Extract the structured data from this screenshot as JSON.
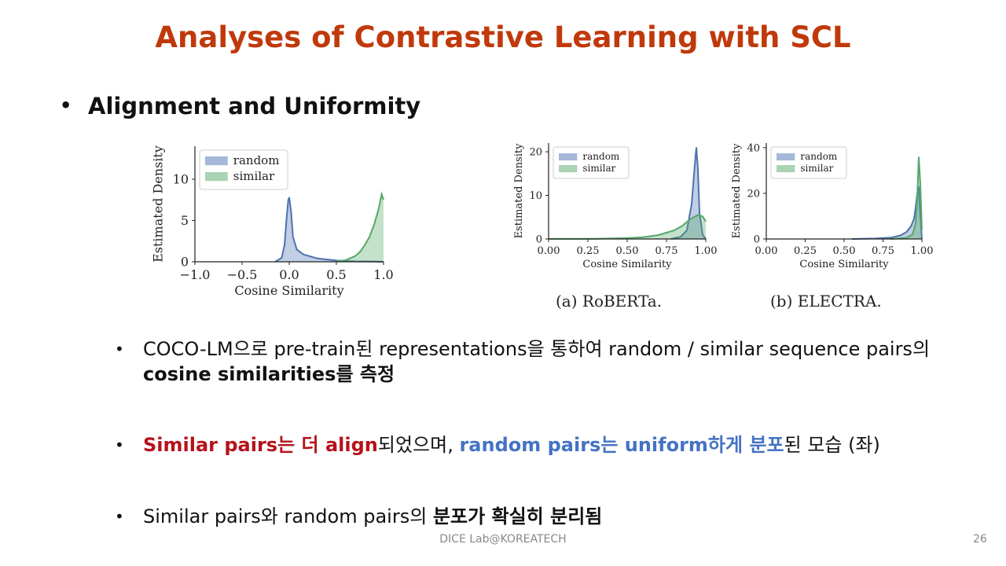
{
  "slide": {
    "title": "Analyses of Contrastive Learning with SCL",
    "section_bullet": "Alignment and Uniformity",
    "footer": "DICE Lab@KOREATECH",
    "page_number": "26"
  },
  "colors": {
    "title": "#c0390b",
    "random": "#4c72b0",
    "similar": "#55a868",
    "red_text": "#b5121b",
    "blue_text": "#4472c4"
  },
  "captions": {
    "roberta": "(a) RoBERTa.",
    "electra": "(b) ELECTRA."
  },
  "bullets": {
    "b1": {
      "t1": "COCO-LM으로 pre-train된 representations을 통하여 random / similar sequence pairs의 ",
      "t2": "cosine similarities를 측정"
    },
    "b2": {
      "t1": "Similar pairs는 더 align",
      "t2": "되었으며, ",
      "t3": "random pairs는 uniform하게 분포",
      "t4": "된 모습 (좌)"
    },
    "b3": {
      "t1": "Similar pairs와 random pairs의 ",
      "t2": "분포가 확실히 분리됨"
    }
  },
  "chart_data": [
    {
      "type": "area",
      "title": "",
      "xlabel": "Cosine Similarity",
      "ylabel": "Estimated Density",
      "xlim": [
        -1.0,
        1.0
      ],
      "ylim": [
        0,
        14
      ],
      "xticks": [
        -1.0,
        -0.5,
        0.0,
        0.5,
        1.0
      ],
      "xtick_labels": [
        "−1.0",
        "−0.5",
        "0.0",
        "0.5",
        "1.0"
      ],
      "yticks": [
        0,
        5,
        10
      ],
      "ytick_labels": [
        "0",
        "5",
        "10"
      ],
      "legend": "top-left",
      "series": [
        {
          "name": "random",
          "x": [
            -0.15,
            -0.08,
            -0.05,
            -0.03,
            -0.01,
            0.0,
            0.02,
            0.04,
            0.08,
            0.15,
            0.3,
            0.5,
            0.7,
            0.9,
            1.0
          ],
          "y": [
            0,
            0.5,
            2.0,
            5.0,
            7.5,
            7.8,
            6.0,
            3.0,
            1.5,
            0.9,
            0.4,
            0.15,
            0.05,
            0.02,
            0
          ]
        },
        {
          "name": "similar",
          "x": [
            0.5,
            0.6,
            0.7,
            0.75,
            0.8,
            0.85,
            0.9,
            0.95,
            0.98,
            1.0
          ],
          "y": [
            0.05,
            0.2,
            0.7,
            1.2,
            2.0,
            3.0,
            4.5,
            6.5,
            8.2,
            7.5
          ]
        }
      ]
    },
    {
      "type": "area",
      "title": "",
      "xlabel": "Cosine Similarity",
      "ylabel": "Estimated Density",
      "xlim": [
        0.0,
        1.0
      ],
      "ylim": [
        0,
        22
      ],
      "xticks": [
        0.0,
        0.25,
        0.5,
        0.75,
        1.0
      ],
      "xtick_labels": [
        "0.00",
        "0.25",
        "0.50",
        "0.75",
        "1.00"
      ],
      "yticks": [
        0,
        10,
        20
      ],
      "ytick_labels": [
        "0",
        "10",
        "20"
      ],
      "legend": "top-left",
      "series": [
        {
          "name": "random",
          "x": [
            0.78,
            0.84,
            0.88,
            0.91,
            0.93,
            0.94,
            0.95,
            0.96,
            0.98,
            1.0
          ],
          "y": [
            0,
            0.5,
            2.0,
            8.0,
            17.0,
            21.0,
            16.0,
            6.0,
            1.0,
            0
          ]
        },
        {
          "name": "similar",
          "x": [
            0.0,
            0.3,
            0.5,
            0.6,
            0.7,
            0.8,
            0.85,
            0.9,
            0.95,
            0.98,
            1.0
          ],
          "y": [
            0.02,
            0.05,
            0.2,
            0.4,
            0.9,
            2.0,
            3.0,
            4.5,
            5.5,
            5.2,
            4.0
          ]
        }
      ]
    },
    {
      "type": "area",
      "title": "",
      "xlabel": "Cosine Similarity",
      "ylabel": "Estimated Density",
      "xlim": [
        0.0,
        1.0
      ],
      "ylim": [
        0,
        42
      ],
      "xticks": [
        0.0,
        0.25,
        0.5,
        0.75,
        1.0
      ],
      "xtick_labels": [
        "0.00",
        "0.25",
        "0.50",
        "0.75",
        "1.00"
      ],
      "yticks": [
        0,
        20,
        40
      ],
      "ytick_labels": [
        "0",
        "20",
        "40"
      ],
      "legend": "top-left",
      "series": [
        {
          "name": "random",
          "x": [
            0.55,
            0.7,
            0.8,
            0.86,
            0.9,
            0.93,
            0.95,
            0.96,
            0.97,
            0.98,
            0.99,
            1.0
          ],
          "y": [
            0,
            0.2,
            0.6,
            1.5,
            3.0,
            5.5,
            9.0,
            14.0,
            20.0,
            23.0,
            10.0,
            0
          ]
        },
        {
          "name": "similar",
          "x": [
            0.8,
            0.9,
            0.94,
            0.96,
            0.97,
            0.98,
            0.99,
            1.0
          ],
          "y": [
            0,
            0.5,
            2.0,
            7.0,
            18.0,
            36.0,
            24.0,
            4.0
          ]
        }
      ]
    }
  ]
}
